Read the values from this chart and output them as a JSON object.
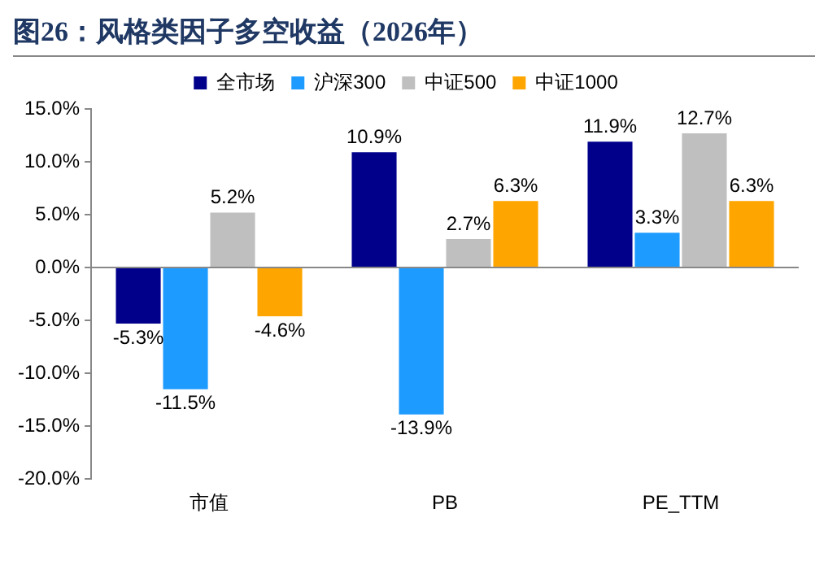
{
  "chart_data": {
    "type": "bar",
    "title": "图26：风格类因子多空收益（2026年）",
    "categories": [
      "市值",
      "PB",
      "PE_TTM"
    ],
    "series": [
      {
        "name": "全市场",
        "color": "#00008b",
        "values": [
          -5.3,
          10.9,
          11.9
        ],
        "value_labels": [
          "-5.3%",
          "10.9%",
          "11.9%"
        ]
      },
      {
        "name": "沪深300",
        "color": "#1e9bff",
        "values": [
          -11.5,
          -13.9,
          3.3
        ],
        "value_labels": [
          "-11.5%",
          "-13.9%",
          "3.3%"
        ]
      },
      {
        "name": "中证500",
        "color": "#bfbfbf",
        "values": [
          5.2,
          2.7,
          12.7
        ],
        "value_labels": [
          "5.2%",
          "2.7%",
          "12.7%"
        ]
      },
      {
        "name": "中证1000",
        "color": "#ffa500",
        "values": [
          -4.6,
          6.3,
          6.3
        ],
        "value_labels": [
          "-4.6%",
          "6.3%",
          "6.3%"
        ]
      }
    ],
    "ylim": [
      -20,
      15
    ],
    "yticks": [
      {
        "value": -20,
        "label": "-20.0%"
      },
      {
        "value": -15,
        "label": "-15.0%"
      },
      {
        "value": -10,
        "label": "-10.0%"
      },
      {
        "value": -5,
        "label": "-5.0%"
      },
      {
        "value": 0,
        "label": "0.0%"
      },
      {
        "value": 5,
        "label": "5.0%"
      },
      {
        "value": 10,
        "label": "10.0%"
      },
      {
        "value": 15,
        "label": "15.0%"
      }
    ],
    "ref_lines": [
      {
        "axis": "y",
        "value": 0,
        "color": "#888888"
      }
    ],
    "grid": false,
    "legend": "top"
  }
}
